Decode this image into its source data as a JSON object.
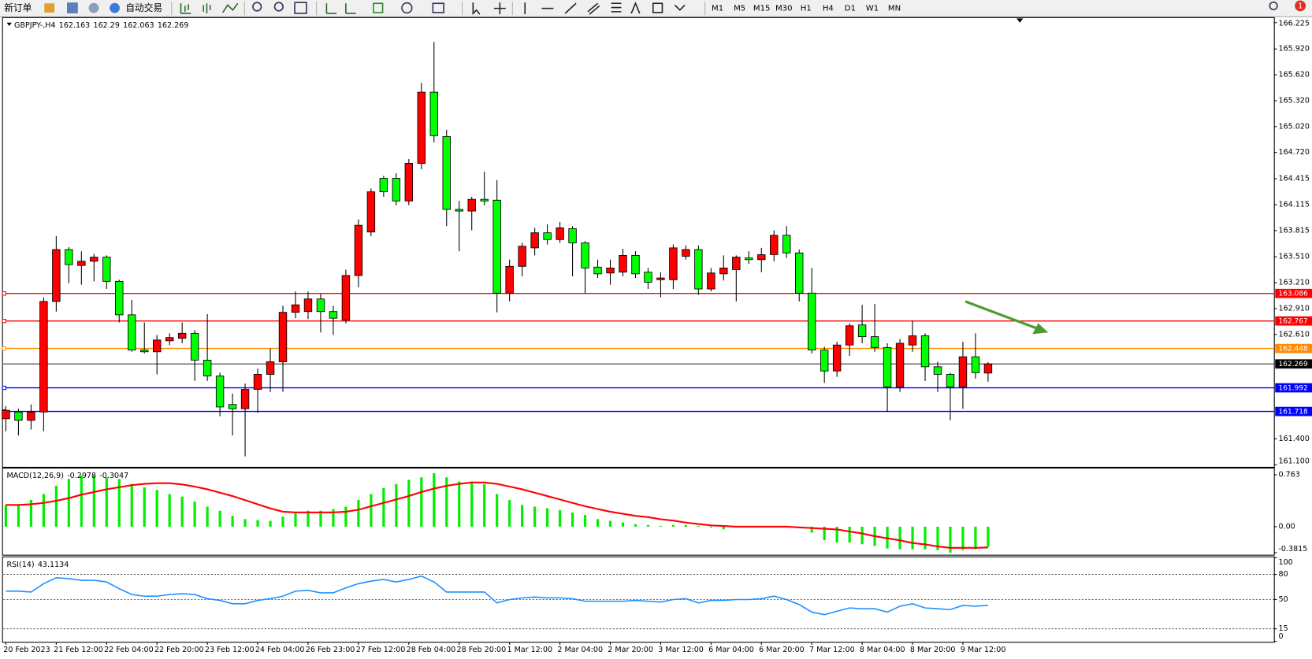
{
  "toolbar": {
    "new_order": "新订单",
    "auto_trading": "自动交易",
    "timeframes": [
      "M1",
      "M5",
      "M15",
      "M30",
      "H1",
      "H4",
      "D1",
      "W1",
      "MN"
    ],
    "notifications": "1"
  },
  "chart_data": [
    {
      "type": "candlestick",
      "symbol": "GBPJPY-,H4",
      "categories": [
        "20 Feb 2023",
        null,
        null,
        null,
        "21 Feb 12:00",
        null,
        null,
        null,
        "22 Feb 04:00",
        null,
        null,
        null,
        "22 Feb 20:00",
        null,
        null,
        null,
        "23 Feb 12:00",
        null,
        null,
        null,
        "24 Feb 04:00",
        null,
        null,
        null,
        "26 Feb 23:00",
        null,
        null,
        null,
        "27 Feb 12:00",
        null,
        null,
        null,
        "28 Feb 04:00",
        null,
        null,
        null,
        "28 Feb 20:00",
        null,
        null,
        null,
        "1 Mar 12:00",
        null,
        null,
        null,
        "2 Mar 04:00",
        null,
        null,
        null,
        "2 Mar 20:00",
        null,
        null,
        null,
        "3 Mar 12:00",
        null,
        null,
        null,
        "6 Mar 04:00",
        null,
        null,
        null,
        "6 Mar 20:00",
        null,
        null,
        null,
        "7 Mar 12:00",
        null,
        null,
        null,
        "8 Mar 04:00",
        null,
        null,
        null,
        "8 Mar 20:00",
        null,
        null,
        null,
        "9 Mar 12:00",
        null,
        null
      ],
      "ohlc": [
        [
          161.634,
          161.78,
          161.488,
          161.731
        ],
        [
          161.712,
          161.75,
          161.44,
          161.615
        ],
        [
          161.615,
          161.799,
          161.508,
          161.712
        ],
        [
          161.712,
          163.041,
          161.488,
          162.993
        ],
        [
          162.993,
          163.75,
          162.876,
          163.595
        ],
        [
          163.595,
          163.624,
          163.206,
          163.42
        ],
        [
          163.41,
          163.575,
          163.187,
          163.459
        ],
        [
          163.459,
          163.546,
          163.226,
          163.507
        ],
        [
          163.507,
          163.527,
          163.138,
          163.226
        ],
        [
          163.226,
          163.245,
          162.75,
          162.838
        ],
        [
          162.838,
          163.012,
          162.41,
          162.43
        ],
        [
          162.43,
          162.75,
          162.391,
          162.41
        ],
        [
          162.41,
          162.605,
          162.148,
          162.546
        ],
        [
          162.537,
          162.624,
          162.488,
          162.575
        ],
        [
          162.566,
          162.75,
          162.508,
          162.624
        ],
        [
          162.624,
          162.663,
          162.071,
          162.313
        ],
        [
          162.313,
          162.847,
          162.071,
          162.129
        ],
        [
          162.129,
          162.168,
          161.663,
          161.77
        ],
        [
          161.799,
          161.925,
          161.44,
          161.75
        ],
        [
          161.75,
          162.042,
          161.197,
          161.974
        ],
        [
          161.974,
          162.216,
          161.702,
          162.148
        ],
        [
          162.148,
          162.449,
          161.945,
          162.294
        ],
        [
          162.294,
          162.944,
          161.945,
          162.867
        ],
        [
          162.867,
          163.109,
          162.799,
          162.954
        ],
        [
          162.876,
          163.109,
          162.789,
          163.022
        ],
        [
          163.022,
          163.08,
          162.634,
          162.876
        ],
        [
          162.876,
          162.944,
          162.605,
          162.799
        ],
        [
          162.779,
          163.362,
          162.74,
          163.294
        ],
        [
          163.294,
          163.944,
          163.158,
          163.876
        ],
        [
          163.798,
          164.303,
          163.75,
          164.264
        ],
        [
          164.42,
          164.449,
          164.206,
          164.264
        ],
        [
          164.42,
          164.478,
          164.109,
          164.158
        ],
        [
          164.158,
          164.643,
          164.109,
          164.594
        ],
        [
          164.594,
          165.526,
          164.526,
          165.419
        ],
        [
          165.419,
          166.002,
          164.837,
          164.915
        ],
        [
          164.905,
          164.983,
          163.866,
          164.06
        ],
        [
          164.06,
          164.158,
          163.575,
          164.041
        ],
        [
          164.041,
          164.206,
          163.818,
          164.177
        ],
        [
          164.177,
          164.497,
          164.109,
          164.158
        ],
        [
          164.167,
          164.4,
          162.867,
          163.09
        ],
        [
          163.09,
          163.478,
          162.993,
          163.4
        ],
        [
          163.4,
          163.672,
          163.284,
          163.633
        ],
        [
          163.614,
          163.847,
          163.527,
          163.789
        ],
        [
          163.789,
          163.886,
          163.653,
          163.711
        ],
        [
          163.711,
          163.915,
          163.672,
          163.847
        ],
        [
          163.837,
          163.866,
          163.284,
          163.672
        ],
        [
          163.672,
          163.692,
          163.09,
          163.381
        ],
        [
          163.391,
          163.478,
          163.265,
          163.313
        ],
        [
          163.323,
          163.478,
          163.187,
          163.381
        ],
        [
          163.333,
          163.604,
          163.284,
          163.527
        ],
        [
          163.527,
          163.575,
          163.265,
          163.313
        ],
        [
          163.333,
          163.381,
          163.138,
          163.216
        ],
        [
          163.245,
          163.333,
          163.041,
          163.265
        ],
        [
          163.245,
          163.653,
          163.138,
          163.614
        ],
        [
          163.517,
          163.643,
          163.478,
          163.595
        ],
        [
          163.595,
          163.643,
          163.071,
          163.138
        ],
        [
          163.138,
          163.381,
          163.109,
          163.323
        ],
        [
          163.313,
          163.527,
          163.235,
          163.381
        ],
        [
          163.362,
          163.527,
          162.993,
          163.507
        ],
        [
          163.498,
          163.575,
          163.43,
          163.478
        ],
        [
          163.478,
          163.614,
          163.333,
          163.536
        ],
        [
          163.536,
          163.818,
          163.459,
          163.76
        ],
        [
          163.76,
          163.866,
          163.498,
          163.556
        ],
        [
          163.556,
          163.595,
          162.993,
          163.09
        ],
        [
          163.09,
          163.381,
          162.391,
          162.43
        ],
        [
          162.43,
          162.469,
          162.051,
          162.187
        ],
        [
          162.187,
          162.527,
          162.119,
          162.488
        ],
        [
          162.488,
          162.74,
          162.362,
          162.711
        ],
        [
          162.721,
          162.954,
          162.508,
          162.585
        ],
        [
          162.585,
          162.964,
          162.41,
          162.459
        ],
        [
          162.459,
          162.508,
          161.712,
          162.003
        ],
        [
          162.003,
          162.556,
          161.945,
          162.508
        ],
        [
          162.488,
          162.77,
          162.41,
          162.595
        ],
        [
          162.595,
          162.624,
          162.071,
          162.236
        ],
        [
          162.236,
          162.294,
          161.945,
          162.148
        ],
        [
          162.148,
          162.168,
          161.615,
          162.003
        ],
        [
          162.003,
          162.527,
          161.75,
          162.352
        ],
        [
          162.352,
          162.624,
          162.1,
          162.168
        ],
        [
          162.163,
          162.29,
          162.063,
          162.269
        ]
      ],
      "up_color": "#ff0000",
      "down_color": "#00ff00",
      "last_price_color": "#000000",
      "ylim": [
        161.081,
        166.274
      ],
      "yticks": [
        166.225,
        {
          "value": 165.92,
          "label": "165.920"
        },
        {
          "value": 165.62,
          "label": "165.620"
        },
        {
          "value": 165.32,
          "label": "165.320"
        },
        {
          "value": 165.02,
          "label": "165.020"
        },
        {
          "value": 164.72,
          "label": "164.720"
        },
        164.415,
        164.115,
        163.815,
        {
          "value": 163.51,
          "label": "163.510"
        },
        {
          "value": 163.21,
          "label": "163.210"
        },
        {
          "value": 162.91,
          "label": "162.910"
        },
        {
          "value": 162.61,
          "label": "162.610"
        },
        {
          "value": 161.4,
          "label": "161.400"
        },
        {
          "value": 161.1,
          "label": "161.100"
        }
      ],
      "levels": [
        {
          "value": 163.086,
          "color": "#ff0000"
        },
        {
          "value": 162.767,
          "color": "#ff0000"
        },
        {
          "value": 162.448,
          "color": "#ff8c00"
        },
        {
          "value": 161.992,
          "color": "#0000ff"
        },
        {
          "value": 161.718,
          "color": "#0000ff"
        }
      ]
    },
    {
      "type": "macd",
      "name": "MACD(12,26,9)",
      "histogram": {
        "color": "#00ee00",
        "values": [
          0.32,
          0.32,
          0.394,
          0.48,
          0.603,
          0.701,
          0.75,
          0.75,
          0.726,
          0.701,
          0.627,
          0.578,
          0.541,
          0.48,
          0.443,
          0.369,
          0.295,
          0.234,
          0.16,
          0.111,
          0.098,
          0.086,
          0.148,
          0.197,
          0.234,
          0.234,
          0.258,
          0.295,
          0.394,
          0.48,
          0.566,
          0.627,
          0.689,
          0.726,
          0.787,
          0.726,
          0.664,
          0.664,
          0.627,
          0.48,
          0.394,
          0.32,
          0.295,
          0.271,
          0.246,
          0.209,
          0.172,
          0.111,
          0.086,
          0.062,
          0.037,
          0.025,
          0.012,
          0.025,
          0.025,
          0.012,
          -0.012,
          -0.037,
          -0.012,
          -0.012,
          -0.012,
          -0.012,
          0.004,
          -0.025,
          -0.086,
          -0.197,
          -0.234,
          -0.234,
          -0.258,
          -0.283,
          -0.32,
          -0.332,
          -0.332,
          -0.332,
          -0.344,
          -0.381,
          -0.344,
          -0.332,
          -0.2978
        ]
      },
      "signal": {
        "color": "#ff0000",
        "values": [
          0.32,
          0.32,
          0.33,
          0.35,
          0.38,
          0.42,
          0.47,
          0.51,
          0.55,
          0.58,
          0.61,
          0.63,
          0.64,
          0.64,
          0.62,
          0.59,
          0.55,
          0.5,
          0.45,
          0.39,
          0.33,
          0.27,
          0.22,
          0.21,
          0.21,
          0.21,
          0.21,
          0.22,
          0.25,
          0.3,
          0.35,
          0.4,
          0.45,
          0.51,
          0.56,
          0.6,
          0.63,
          0.65,
          0.65,
          0.63,
          0.59,
          0.55,
          0.5,
          0.45,
          0.4,
          0.35,
          0.3,
          0.26,
          0.22,
          0.19,
          0.16,
          0.14,
          0.11,
          0.09,
          0.06,
          0.04,
          0.02,
          0.01,
          0.0,
          0.0,
          0.0,
          0.0,
          0.0,
          -0.01,
          -0.02,
          -0.03,
          -0.04,
          -0.07,
          -0.1,
          -0.14,
          -0.17,
          -0.2,
          -0.24,
          -0.26,
          -0.29,
          -0.31,
          -0.31,
          -0.31,
          -0.3047
        ]
      },
      "ylim": [
        -0.406,
        0.849
      ],
      "yticks": [
        0.763,
        {
          "value": 0,
          "label": "0.00"
        },
        -0.3815
      ]
    },
    {
      "type": "rsi",
      "name": "RSI(14)",
      "color": "#1e90ff",
      "values": [
        60,
        60,
        59,
        69,
        76,
        75,
        73,
        73,
        71,
        63,
        56,
        54,
        54,
        56,
        57,
        56,
        51,
        49,
        45,
        45,
        49,
        51,
        54,
        60,
        61,
        58,
        58,
        64,
        69,
        72,
        74,
        71,
        74,
        78,
        71,
        59,
        59,
        59,
        59,
        46,
        50,
        52,
        53,
        52,
        52,
        51,
        48,
        48,
        48,
        48,
        49,
        48,
        47,
        50,
        51,
        46,
        49,
        49,
        50,
        50,
        51,
        54,
        50,
        44,
        35,
        32,
        36,
        40,
        39,
        39,
        35,
        42,
        45,
        40,
        39,
        38,
        43,
        42,
        43.1134
      ],
      "ylim": [
        0,
        100
      ],
      "yticks": [
        100,
        80,
        50,
        15,
        0
      ],
      "levels": [
        80,
        50,
        15
      ]
    }
  ]
}
